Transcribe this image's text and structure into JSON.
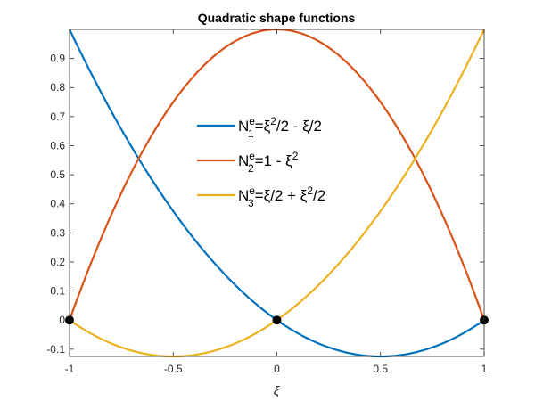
{
  "chart_data": {
    "type": "line",
    "title": "Quadratic shape functions",
    "xlabel": "ξ",
    "ylabel": "",
    "xlim": [
      -1,
      1
    ],
    "ylim": [
      -0.125,
      1
    ],
    "xticks": [
      "-1",
      "-0.5",
      "0",
      "0.5",
      "1"
    ],
    "yticks": [
      "-0.1",
      "0",
      "0.1",
      "0.2",
      "0.3",
      "0.4",
      "0.5",
      "0.6",
      "0.7",
      "0.8",
      "0.9"
    ],
    "grid": false,
    "legend_position": "inside-center",
    "x": [
      -1,
      -0.75,
      -0.5,
      -0.25,
      0,
      0.25,
      0.5,
      0.75,
      1
    ],
    "series": [
      {
        "name": "N1e = ξ²/2 - ξ/2",
        "color": "#0072BD",
        "values": [
          1,
          0.65625,
          0.375,
          0.15625,
          0,
          -0.09375,
          -0.125,
          -0.09375,
          0
        ]
      },
      {
        "name": "N2e = 1 - ξ²",
        "color": "#D95319",
        "values": [
          0,
          0.4375,
          0.75,
          0.9375,
          1,
          0.9375,
          0.75,
          0.4375,
          0
        ]
      },
      {
        "name": "N3e = ξ/2 + ξ²/2",
        "color": "#EDB120",
        "values": [
          0,
          -0.09375,
          -0.125,
          -0.09375,
          0,
          0.15625,
          0.375,
          0.65625,
          1
        ]
      }
    ],
    "markers": {
      "color": "#000000",
      "points": [
        [
          -1,
          0
        ],
        [
          0,
          0
        ],
        [
          1,
          0
        ]
      ]
    }
  },
  "legend": {
    "items": [
      {
        "base": "N",
        "sup": "e",
        "sub": "1",
        "rest_parts": [
          "=ξ",
          "2",
          "/2 - ξ/2"
        ]
      },
      {
        "base": "N",
        "sup": "e",
        "sub": "2",
        "rest_parts": [
          "=1 - ξ",
          "2",
          ""
        ]
      },
      {
        "base": "N",
        "sup": "e",
        "sub": "3",
        "rest_parts": [
          "=ξ/2 + ξ",
          "2",
          "/2"
        ]
      }
    ]
  }
}
